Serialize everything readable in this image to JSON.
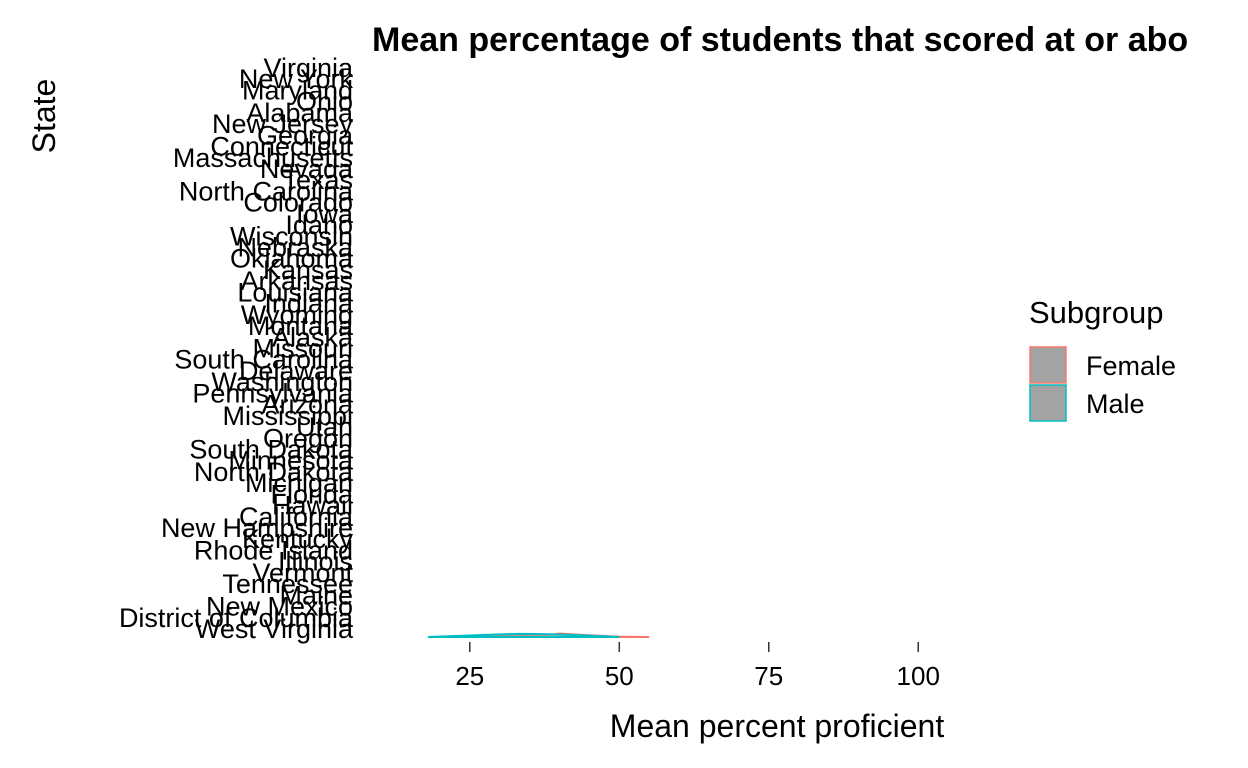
{
  "chart_data": {
    "type": "ridgeline",
    "title": "Mean percentage of students that scored at or abo",
    "xlabel": "Mean percent proficient",
    "ylabel": "State",
    "x_ticks": [
      25,
      50,
      75,
      100
    ],
    "xlim": [
      15,
      112
    ],
    "categories": [
      "West Virginia",
      "District of Columbia",
      "New Mexico",
      "Maine",
      "Tennessee",
      "Vermont",
      "Illinois",
      "Rhode Island",
      "Kentucky",
      "New Hampshire",
      "California",
      "Hawaii",
      "Florida",
      "Michigan",
      "North Dakota",
      "Minnesota",
      "South Dakota",
      "Oregon",
      "Utah",
      "Mississippi",
      "Arizona",
      "Pennsylvania",
      "Washington",
      "Delaware",
      "South Carolina",
      "Missouri",
      "Alaska",
      "Montana",
      "Wyoming",
      "Indiana",
      "Louisiana",
      "Arkansas",
      "Kansas",
      "Oklahoma",
      "Nebraska",
      "Wisconsin",
      "Idaho",
      "Iowa",
      "Colorado",
      "North Carolina",
      "Texas",
      "Nevada",
      "Massachusetts",
      "Connecticut",
      "Georgia",
      "New Jersey",
      "Alabama",
      "Ohio",
      "Maryland",
      "New York",
      "Virginia"
    ],
    "series": [
      {
        "name": "Female",
        "color": "#F8766D",
        "row": "West Virginia",
        "density_x": [
          20,
          25,
          30,
          35,
          38,
          40,
          42,
          45,
          48,
          50,
          53,
          55
        ],
        "density_y": [
          0.0,
          0.15,
          0.3,
          0.4,
          0.55,
          1.0,
          0.8,
          0.5,
          0.25,
          0.12,
          0.04,
          0.0
        ]
      },
      {
        "name": "Male",
        "color": "#00BFC4",
        "row": "West Virginia",
        "density_x": [
          18,
          22,
          26,
          30,
          33,
          36,
          40,
          44,
          48,
          50
        ],
        "density_y": [
          0.0,
          0.25,
          0.5,
          0.75,
          0.9,
          0.85,
          0.7,
          0.45,
          0.15,
          0.0
        ]
      }
    ],
    "legend": {
      "title": "Subgroup",
      "position": "right",
      "items": [
        {
          "label": "Female",
          "color": "#F8766D",
          "fill": "#A3A3A3"
        },
        {
          "label": "Male",
          "color": "#00BFC4",
          "fill": "#A3A3A3"
        }
      ]
    },
    "grid": false
  }
}
